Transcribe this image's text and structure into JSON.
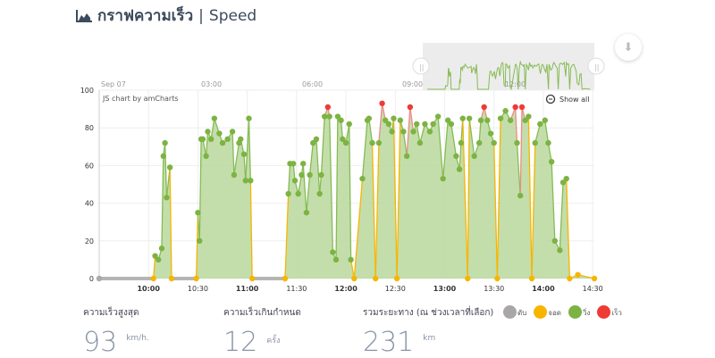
{
  "header": {
    "title_th": "กราฟความเร็ว",
    "separator": "|",
    "title_en": "Speed"
  },
  "chart": {
    "credit": "JS chart by amCharts",
    "show_all": "Show all",
    "navigator_labels": [
      "Sep 07",
      "03:00",
      "06:00",
      "09:00",
      "12:00"
    ],
    "y_ticks": [
      0,
      20,
      40,
      60,
      80,
      100
    ],
    "x_ticks": [
      "10:00",
      "10:30",
      "11:00",
      "11:30",
      "12:00",
      "12:30",
      "13:00",
      "13:30",
      "14:00",
      "14:30"
    ],
    "bold_x_ticks": [
      "10:00",
      "11:00",
      "12:00",
      "13:00",
      "14:00"
    ]
  },
  "chart_data": {
    "type": "area",
    "title": "Speed",
    "ylabel": "km/h",
    "ylim": [
      0,
      100
    ],
    "xlim_minutes": [
      570,
      871
    ],
    "x_unit": "minutes since 00:00",
    "speed_limit": 90,
    "points": [
      [
        570,
        0
      ],
      [
        603,
        0
      ],
      [
        604,
        12
      ],
      [
        606,
        10
      ],
      [
        608,
        16
      ],
      [
        609,
        65
      ],
      [
        610,
        72
      ],
      [
        611,
        43
      ],
      [
        613,
        59
      ],
      [
        614,
        0
      ],
      [
        629,
        0
      ],
      [
        630,
        35
      ],
      [
        631,
        20
      ],
      [
        632,
        74
      ],
      [
        633,
        74
      ],
      [
        635,
        65
      ],
      [
        636,
        78
      ],
      [
        638,
        74
      ],
      [
        640,
        85
      ],
      [
        643,
        77
      ],
      [
        645,
        72
      ],
      [
        648,
        74
      ],
      [
        651,
        78
      ],
      [
        652,
        55
      ],
      [
        655,
        72
      ],
      [
        656,
        74
      ],
      [
        658,
        66
      ],
      [
        659,
        52
      ],
      [
        661,
        85
      ],
      [
        662,
        52
      ],
      [
        663,
        0
      ],
      [
        683,
        0
      ],
      [
        685,
        45
      ],
      [
        686,
        61
      ],
      [
        688,
        61
      ],
      [
        689,
        52
      ],
      [
        691,
        45
      ],
      [
        693,
        55
      ],
      [
        694,
        61
      ],
      [
        696,
        35
      ],
      [
        698,
        55
      ],
      [
        700,
        72
      ],
      [
        702,
        74
      ],
      [
        704,
        45
      ],
      [
        705,
        55
      ],
      [
        707,
        86
      ],
      [
        709,
        91
      ],
      [
        710,
        86
      ],
      [
        712,
        14
      ],
      [
        714,
        10
      ],
      [
        715,
        86
      ],
      [
        717,
        84
      ],
      [
        718,
        74
      ],
      [
        720,
        72
      ],
      [
        722,
        82
      ],
      [
        723,
        10
      ],
      [
        725,
        0
      ],
      [
        730,
        53
      ],
      [
        733,
        84
      ],
      [
        734,
        85
      ],
      [
        736,
        72
      ],
      [
        738,
        0
      ],
      [
        740,
        72
      ],
      [
        742,
        93
      ],
      [
        744,
        84
      ],
      [
        746,
        82
      ],
      [
        748,
        78
      ],
      [
        749,
        85
      ],
      [
        751,
        0
      ],
      [
        753,
        84
      ],
      [
        755,
        78
      ],
      [
        757,
        65
      ],
      [
        759,
        91
      ],
      [
        761,
        78
      ],
      [
        763,
        82
      ],
      [
        765,
        72
      ],
      [
        768,
        82
      ],
      [
        771,
        78
      ],
      [
        773,
        82
      ],
      [
        776,
        86
      ],
      [
        779,
        53
      ],
      [
        782,
        84
      ],
      [
        784,
        82
      ],
      [
        787,
        65
      ],
      [
        789,
        58
      ],
      [
        790,
        72
      ],
      [
        791,
        85
      ],
      [
        794,
        0
      ],
      [
        795,
        85
      ],
      [
        798,
        65
      ],
      [
        801,
        72
      ],
      [
        802,
        84
      ],
      [
        804,
        91
      ],
      [
        806,
        84
      ],
      [
        808,
        77
      ],
      [
        810,
        72
      ],
      [
        812,
        0
      ],
      [
        814,
        85
      ],
      [
        817,
        89
      ],
      [
        820,
        84
      ],
      [
        823,
        91
      ],
      [
        824,
        72
      ],
      [
        826,
        44
      ],
      [
        827,
        91
      ],
      [
        829,
        84
      ],
      [
        831,
        86
      ],
      [
        833,
        0
      ],
      [
        835,
        72
      ],
      [
        838,
        82
      ],
      [
        841,
        84
      ],
      [
        843,
        72
      ],
      [
        845,
        62
      ],
      [
        847,
        20
      ],
      [
        850,
        15
      ],
      [
        852,
        51
      ],
      [
        854,
        53
      ],
      [
        856,
        0
      ],
      [
        861,
        2
      ],
      [
        871,
        0
      ]
    ]
  },
  "stats": [
    {
      "label": "ความเร็วสูงสุด",
      "value": "93",
      "unit": "km/h."
    },
    {
      "label": "ความเร็วเกินกำหนด",
      "value": "12",
      "unit": "ครั้ง"
    },
    {
      "label": "รวมระยะทาง (ณ ช่วงเวลาที่เลือก)",
      "value": "231",
      "unit": "km"
    }
  ],
  "legend": [
    {
      "label": "ดับ",
      "color": "#a9a6a6"
    },
    {
      "label": "จอด",
      "color": "#f7b500"
    },
    {
      "label": "วิ่ง",
      "color": "#7cb342"
    },
    {
      "label": "เร็ว",
      "color": "#ee3b34"
    }
  ],
  "colors": {
    "area": "#b9d89c",
    "line": "#86bb55",
    "stop": "#f7b500",
    "fast": "#f08a8a",
    "off": "#b5b5b5"
  }
}
